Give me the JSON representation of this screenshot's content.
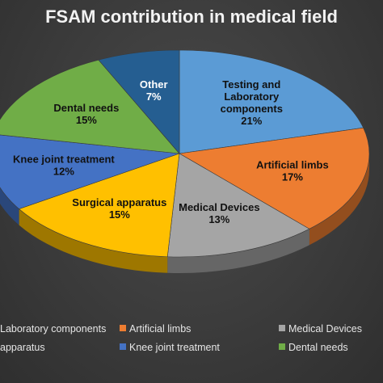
{
  "chart_data": {
    "type": "pie",
    "title": "FSAM contribution in medical field",
    "slices": [
      {
        "label": "Testing and Laboratory components",
        "label_lines": [
          "Testing and",
          "Laboratory",
          "components"
        ],
        "value": 21,
        "pct": "21%",
        "color": "#5b9bd5"
      },
      {
        "label": "Artificial limbs",
        "label_lines": [
          "Artificial limbs"
        ],
        "value": 17,
        "pct": "17%",
        "color": "#ed7d31"
      },
      {
        "label": "Medical Devices",
        "label_lines": [
          "Medical Devices"
        ],
        "value": 13,
        "pct": "13%",
        "color": "#a5a5a5"
      },
      {
        "label": "Surgical apparatus",
        "label_lines": [
          "Surgical apparatus"
        ],
        "value": 15,
        "pct": "15%",
        "color": "#ffc000"
      },
      {
        "label": "Knee joint treatment",
        "label_lines": [
          "Knee joint treatment"
        ],
        "value": 12,
        "pct": "12%",
        "color": "#4472c4"
      },
      {
        "label": "Dental needs",
        "label_lines": [
          "Dental needs"
        ],
        "value": 15,
        "pct": "15%",
        "color": "#70ad47"
      },
      {
        "label": "Other",
        "label_lines": [
          "Other"
        ],
        "value": 7,
        "pct": "7%",
        "color": "#255e91"
      }
    ],
    "legend": {
      "placement": "bottom",
      "rows": [
        [
          {
            "text": "Laboratory components",
            "color": "#5b9bd5"
          },
          {
            "text": "Artificial limbs",
            "color": "#ed7d31"
          },
          {
            "text": "Medical Devices",
            "color": "#a5a5a5"
          }
        ],
        [
          {
            "text": "apparatus",
            "color": "#ffc000"
          },
          {
            "text": "Knee joint treatment",
            "color": "#4472c4"
          },
          {
            "text": "Dental needs",
            "color": "#70ad47"
          }
        ]
      ]
    }
  }
}
